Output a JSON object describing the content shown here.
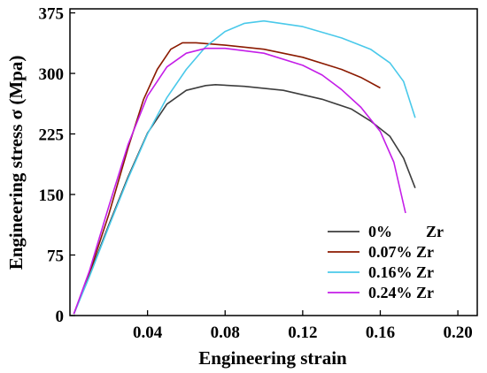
{
  "chart_data": {
    "type": "line",
    "xlabel": "Engineering strain",
    "ylabel": "Engineering stress σ (Mpa)",
    "xlim": [
      0,
      0.21
    ],
    "ylim": [
      0,
      380
    ],
    "x_ticks": [
      {
        "value": 0.04,
        "label": "0.04"
      },
      {
        "value": 0.08,
        "label": "0.08"
      },
      {
        "value": 0.12,
        "label": "0.12"
      },
      {
        "value": 0.16,
        "label": "0.16"
      },
      {
        "value": 0.2,
        "label": "0.20"
      }
    ],
    "y_ticks": [
      {
        "value": 0,
        "label": "0"
      },
      {
        "value": 75,
        "label": "75"
      },
      {
        "value": 150,
        "label": "150"
      },
      {
        "value": 225,
        "label": "225"
      },
      {
        "value": 300,
        "label": "300"
      },
      {
        "value": 375,
        "label": "375"
      }
    ],
    "grid": false,
    "legend_position": "bottom-right",
    "series": [
      {
        "name": "0%",
        "name_suffix": "Zr",
        "color": "#3d3d3d",
        "points": [
          [
            0.002,
            2
          ],
          [
            0.01,
            50
          ],
          [
            0.02,
            112
          ],
          [
            0.03,
            172
          ],
          [
            0.04,
            226
          ],
          [
            0.05,
            262
          ],
          [
            0.06,
            279
          ],
          [
            0.07,
            285
          ],
          [
            0.075,
            286
          ],
          [
            0.09,
            284
          ],
          [
            0.11,
            279
          ],
          [
            0.13,
            268
          ],
          [
            0.145,
            256
          ],
          [
            0.155,
            241
          ],
          [
            0.165,
            222
          ],
          [
            0.172,
            195
          ],
          [
            0.178,
            158
          ]
        ]
      },
      {
        "name": "0.07% Zr",
        "color": "#8b1a00",
        "points": [
          [
            0.002,
            2
          ],
          [
            0.01,
            52
          ],
          [
            0.02,
            125
          ],
          [
            0.03,
            208
          ],
          [
            0.038,
            268
          ],
          [
            0.045,
            305
          ],
          [
            0.052,
            330
          ],
          [
            0.058,
            338
          ],
          [
            0.065,
            338
          ],
          [
            0.08,
            335
          ],
          [
            0.1,
            330
          ],
          [
            0.12,
            320
          ],
          [
            0.14,
            305
          ],
          [
            0.15,
            295
          ],
          [
            0.16,
            282
          ]
        ]
      },
      {
        "name": "0.16% Zr",
        "color": "#4ac9ea",
        "points": [
          [
            0.002,
            2
          ],
          [
            0.01,
            48
          ],
          [
            0.02,
            110
          ],
          [
            0.03,
            170
          ],
          [
            0.04,
            225
          ],
          [
            0.05,
            270
          ],
          [
            0.06,
            305
          ],
          [
            0.07,
            333
          ],
          [
            0.08,
            352
          ],
          [
            0.09,
            362
          ],
          [
            0.1,
            365
          ],
          [
            0.12,
            358
          ],
          [
            0.14,
            344
          ],
          [
            0.155,
            330
          ],
          [
            0.165,
            313
          ],
          [
            0.172,
            290
          ],
          [
            0.178,
            245
          ]
        ]
      },
      {
        "name": "0.24% Zr",
        "color": "#c41ee8",
        "points": [
          [
            0.002,
            2
          ],
          [
            0.01,
            55
          ],
          [
            0.02,
            135
          ],
          [
            0.03,
            212
          ],
          [
            0.04,
            272
          ],
          [
            0.05,
            308
          ],
          [
            0.06,
            325
          ],
          [
            0.07,
            331
          ],
          [
            0.08,
            331
          ],
          [
            0.1,
            325
          ],
          [
            0.12,
            310
          ],
          [
            0.13,
            298
          ],
          [
            0.14,
            280
          ],
          [
            0.15,
            258
          ],
          [
            0.16,
            228
          ],
          [
            0.167,
            190
          ],
          [
            0.173,
            127
          ]
        ]
      }
    ]
  }
}
